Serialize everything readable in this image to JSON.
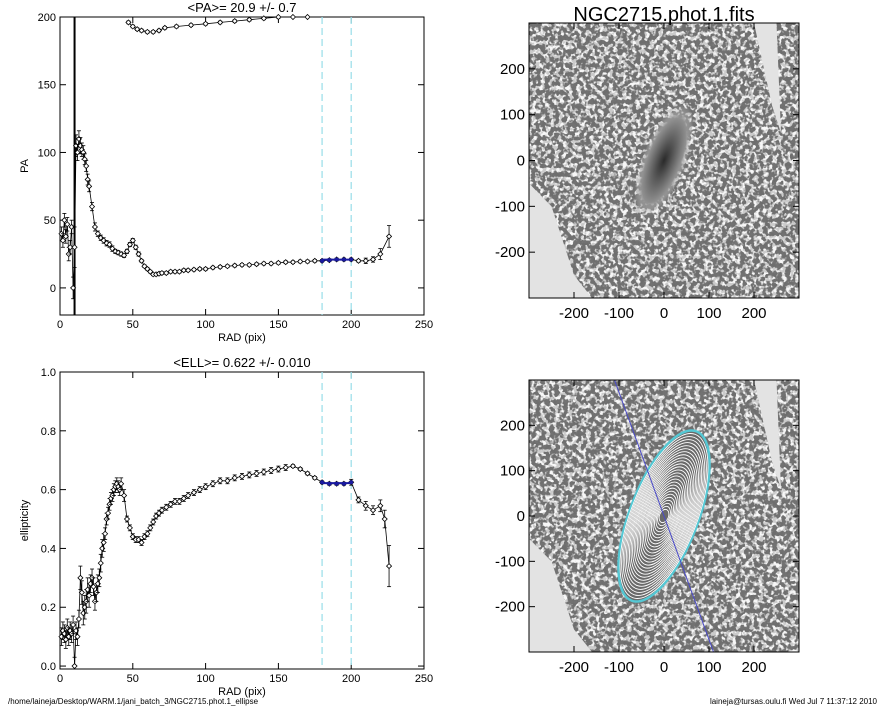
{
  "colors": {
    "guide": "#9fe0ea",
    "fit": "#1a1aa0",
    "data": "#000000",
    "image_gray": "#7a7a7a",
    "image_light": "#e3e3e3",
    "contour": "#ffffff",
    "contour_outer": "#55c8d4"
  },
  "footer": {
    "left": "/home/laineja/Desktop/WARM.1/jani_batch_3/NGC2715.phot.1_ellipse",
    "right": "laineja@tursas.oulu.fi  Wed Jul  7 11:37:12 2010"
  },
  "chart_data": [
    {
      "type": "scatter",
      "title": "<PA>=  20.9 +/-   0.7",
      "xlabel": "RAD (pix)",
      "ylabel": "PA",
      "xlim": [
        0,
        250
      ],
      "ylim": [
        -20,
        200
      ],
      "xticks": [
        0,
        50,
        100,
        150,
        200,
        250
      ],
      "yticks": [
        0,
        50,
        100,
        150,
        200
      ],
      "grid": false,
      "guides_x": [
        180,
        200
      ],
      "mean_line": {
        "x": [
          180,
          200
        ],
        "y": 20.9
      },
      "series": [
        {
          "x": [
            1,
            2,
            3,
            4,
            5,
            6,
            7,
            8,
            9,
            10,
            11,
            12,
            13,
            14,
            15,
            16,
            17,
            18,
            19,
            20,
            22,
            24,
            26,
            28,
            30,
            32,
            34,
            36,
            38,
            40,
            42,
            44,
            46,
            48,
            50,
            52,
            54,
            56,
            58,
            60,
            62,
            64,
            66,
            68,
            70,
            73,
            76,
            79,
            82,
            85,
            88,
            92,
            96,
            100,
            105,
            110,
            115,
            120,
            125,
            130,
            135,
            140,
            145,
            150,
            155,
            160,
            165,
            170,
            175,
            180,
            185,
            190,
            195,
            200,
            205,
            210,
            215,
            220,
            226
          ],
          "y": [
            40,
            35,
            50,
            38,
            47,
            25,
            30,
            45,
            0,
            30,
            105,
            100,
            110,
            105,
            102,
            100,
            95,
            90,
            80,
            75,
            60,
            45,
            40,
            37,
            35,
            33,
            32,
            29,
            27,
            26,
            25,
            24,
            27,
            32,
            35,
            30,
            25,
            20,
            16,
            14,
            12,
            10,
            10,
            10.5,
            11,
            11,
            12,
            12,
            12,
            13,
            13,
            13.5,
            14,
            14,
            15,
            15.5,
            16,
            16.5,
            17,
            17,
            17.5,
            18,
            18,
            18.5,
            19,
            19,
            19.5,
            19.5,
            20,
            20,
            20.5,
            21,
            21,
            21,
            20,
            20,
            21,
            25,
            38
          ],
          "yerr": [
            5,
            5,
            5,
            5,
            5,
            5,
            5,
            5,
            8,
            15,
            8,
            6,
            6,
            6,
            5,
            5,
            4,
            4,
            4,
            4,
            3,
            3,
            2,
            2,
            2,
            2,
            2,
            2,
            1.5,
            1.5,
            1.5,
            1.5,
            1.5,
            1.5,
            1.5,
            1.5,
            1.5,
            1,
            1,
            1,
            1,
            1,
            1,
            1,
            1,
            1,
            1,
            1,
            1,
            1,
            1,
            1,
            1,
            1,
            1,
            1,
            1,
            1,
            1,
            1,
            1,
            1,
            1,
            1,
            1,
            1,
            1,
            1,
            1,
            1,
            1,
            1,
            1,
            1,
            1,
            2,
            2,
            4,
            8
          ]
        },
        {
          "x": [
            47,
            50,
            53,
            56,
            60,
            64,
            68,
            72,
            80,
            90,
            100,
            110,
            120,
            130,
            140,
            150,
            160,
            170
          ],
          "y": [
            196,
            193,
            191,
            190,
            189,
            189,
            190,
            192,
            193,
            194,
            195,
            196,
            197,
            198,
            199,
            200,
            201,
            202
          ],
          "yerr": [
            1,
            1,
            1,
            1,
            1,
            1,
            1,
            1,
            1,
            1,
            1,
            1,
            1,
            1,
            1,
            1,
            1,
            1
          ]
        }
      ]
    },
    {
      "type": "scatter",
      "title": "<ELL>= 0.622 +/-  0.010",
      "xlabel": "RAD (pix)",
      "ylabel": "ellipticity",
      "xlim": [
        0,
        250
      ],
      "ylim": [
        -0.01,
        1.0
      ],
      "xticks": [
        0,
        50,
        100,
        150,
        200,
        250
      ],
      "yticks": [
        0.0,
        0.2,
        0.4,
        0.6,
        0.8,
        1.0
      ],
      "grid": false,
      "guides_x": [
        180,
        200
      ],
      "mean_line": {
        "x": [
          180,
          200
        ],
        "y": 0.622
      },
      "series": [
        {
          "x": [
            1,
            2,
            3,
            4,
            5,
            6,
            7,
            8,
            9,
            10,
            11,
            12,
            13,
            14,
            15,
            16,
            17,
            18,
            19,
            20,
            21,
            22,
            23,
            24,
            25,
            26,
            27,
            28,
            29,
            30,
            31,
            32,
            33,
            34,
            35,
            36,
            37,
            38,
            39,
            40,
            41,
            42,
            44,
            46,
            48,
            50,
            52,
            54,
            56,
            58,
            60,
            62,
            64,
            66,
            68,
            70,
            73,
            76,
            79,
            82,
            85,
            88,
            92,
            96,
            100,
            105,
            110,
            115,
            120,
            125,
            130,
            135,
            140,
            145,
            150,
            155,
            160,
            165,
            170,
            175,
            180,
            185,
            190,
            195,
            200,
            205,
            210,
            215,
            220,
            223,
            226
          ],
          "y": [
            0.1,
            0.12,
            0.11,
            0.09,
            0.13,
            0.1,
            0.12,
            0.11,
            0.14,
            0.0,
            0.12,
            0.1,
            0.16,
            0.3,
            0.25,
            0.18,
            0.2,
            0.22,
            0.26,
            0.24,
            0.28,
            0.3,
            0.27,
            0.22,
            0.25,
            0.28,
            0.3,
            0.35,
            0.4,
            0.42,
            0.45,
            0.5,
            0.52,
            0.55,
            0.57,
            0.58,
            0.6,
            0.61,
            0.62,
            0.61,
            0.6,
            0.62,
            0.58,
            0.5,
            0.47,
            0.44,
            0.43,
            0.43,
            0.42,
            0.44,
            0.45,
            0.47,
            0.49,
            0.51,
            0.52,
            0.53,
            0.54,
            0.55,
            0.56,
            0.56,
            0.57,
            0.58,
            0.59,
            0.6,
            0.61,
            0.62,
            0.63,
            0.63,
            0.64,
            0.645,
            0.65,
            0.655,
            0.66,
            0.665,
            0.67,
            0.675,
            0.68,
            0.67,
            0.655,
            0.64,
            0.625,
            0.62,
            0.62,
            0.62,
            0.625,
            0.565,
            0.545,
            0.53,
            0.545,
            0.5,
            0.34
          ],
          "yerr": [
            0.03,
            0.03,
            0.03,
            0.03,
            0.03,
            0.03,
            0.03,
            0.03,
            0.03,
            0.03,
            0.03,
            0.03,
            0.03,
            0.04,
            0.04,
            0.04,
            0.04,
            0.04,
            0.04,
            0.04,
            0.03,
            0.03,
            0.03,
            0.03,
            0.03,
            0.03,
            0.03,
            0.03,
            0.03,
            0.03,
            0.02,
            0.02,
            0.02,
            0.02,
            0.02,
            0.02,
            0.02,
            0.02,
            0.02,
            0.02,
            0.02,
            0.02,
            0.02,
            0.01,
            0.01,
            0.01,
            0.01,
            0.01,
            0.01,
            0.01,
            0.01,
            0.01,
            0.01,
            0.01,
            0.01,
            0.01,
            0.01,
            0.01,
            0.01,
            0.01,
            0.01,
            0.01,
            0.01,
            0.01,
            0.01,
            0.01,
            0.01,
            0.01,
            0.01,
            0.01,
            0.01,
            0.01,
            0.01,
            0.01,
            0.01,
            0.01,
            0.005,
            0.005,
            0.005,
            0.005,
            0.005,
            0.005,
            0.005,
            0.005,
            0.01,
            0.01,
            0.015,
            0.015,
            0.02,
            0.03,
            0.07
          ]
        }
      ]
    },
    {
      "type": "heatmap",
      "title": "NGC2715.phot.1.fits",
      "xlim": [
        -300,
        300
      ],
      "ylim": [
        -300,
        300
      ],
      "xticks": [
        -200,
        -100,
        0,
        100,
        200
      ],
      "yticks": [
        -200,
        -100,
        0,
        100,
        200
      ],
      "galaxy": {
        "center": [
          0,
          0
        ],
        "semi_major": 130,
        "semi_minor": 48,
        "pa_deg": 21
      }
    },
    {
      "type": "heatmap",
      "title": "",
      "xlim": [
        -300,
        300
      ],
      "ylim": [
        -300,
        300
      ],
      "xticks": [
        -200,
        -100,
        0,
        100,
        200
      ],
      "yticks": [
        -200,
        -100,
        0,
        100,
        200
      ],
      "galaxy": {
        "center": [
          0,
          0
        ],
        "semi_major": 200,
        "semi_minor": 76,
        "pa_deg": 21
      },
      "major_axis_line": {
        "from": [
          -110,
          300
        ],
        "to": [
          110,
          -300
        ]
      }
    }
  ]
}
